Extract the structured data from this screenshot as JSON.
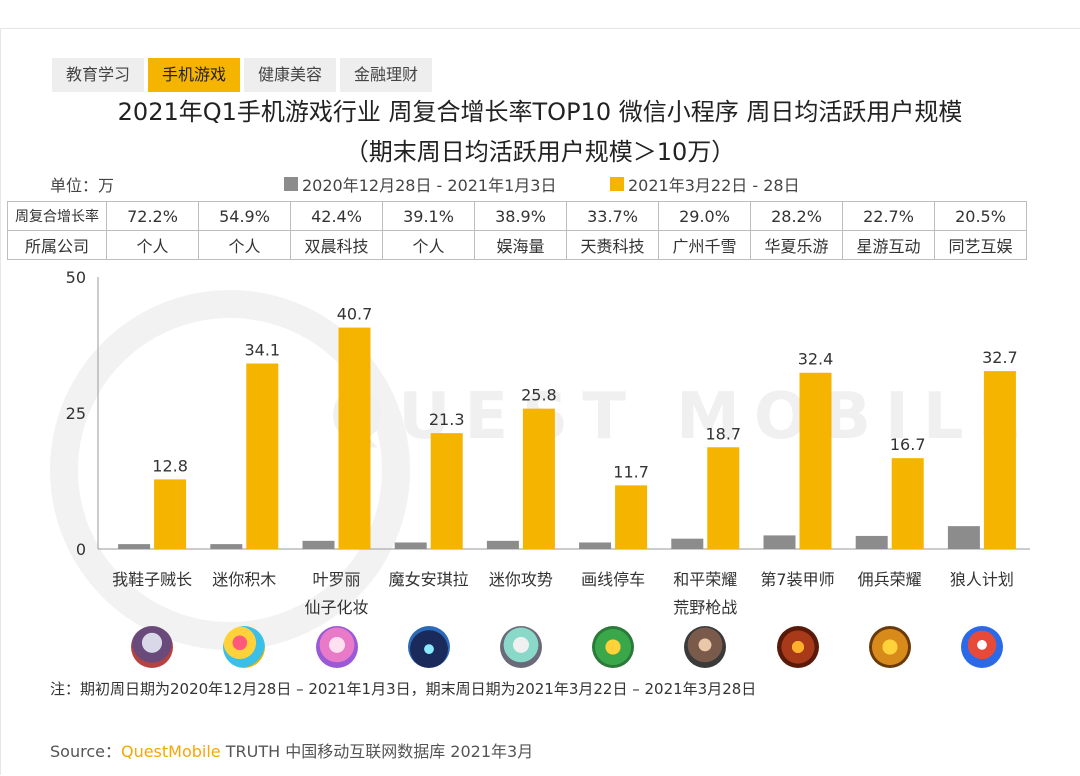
{
  "tabs": [
    {
      "label": "教育学习",
      "active": false
    },
    {
      "label": "手机游戏",
      "active": true
    },
    {
      "label": "健康美容",
      "active": false
    },
    {
      "label": "金融理财",
      "active": false
    }
  ],
  "watermark": "QUEST MOBILE",
  "unit_label": "单位：万",
  "colors": {
    "prev": "#8c8c8c",
    "curr": "#f5b400"
  },
  "table": {
    "row1_header": "周复合增长率",
    "row2_header": "所属公司",
    "growth": [
      "72.2%",
      "54.9%",
      "42.4%",
      "39.1%",
      "38.9%",
      "33.7%",
      "29.0%",
      "28.2%",
      "22.7%",
      "20.5%"
    ],
    "company": [
      "个人",
      "个人",
      "双晨科技",
      "个人",
      "娱海量",
      "天赉科技",
      "广州千雪",
      "华夏乐游",
      "星游互动",
      "同艺互娱"
    ]
  },
  "icons": [
    "game-icon-1",
    "game-icon-2",
    "game-icon-3",
    "game-icon-4",
    "game-icon-5",
    "game-icon-6",
    "game-icon-7",
    "game-icon-8",
    "game-icon-9",
    "game-icon-10"
  ],
  "note": "注：期初周日期为2020年12月28日 – 2021年1月3日，期末周日期为2021年3月22日 – 2021年3月28日",
  "source": {
    "prefix": "Source：",
    "brand": "QuestMobile",
    "suffix": " TRUTH 中国移动互联网数据库 2021年3月"
  },
  "chart_data": {
    "type": "bar",
    "title": "2021年Q1手机游戏行业 周复合增长率TOP10 微信小程序 周日均活跃用户规模",
    "subtitle": "（期末周日均活跃用户规模＞10万）",
    "categories": [
      "我鞋子贼长",
      "迷你积木",
      "叶罗丽\n仙子化妆",
      "魔女安琪拉",
      "迷你攻势",
      "画线停车",
      "和平荣耀\n荒野枪战",
      "第7装甲师",
      "佣兵荣耀",
      "狼人计划"
    ],
    "series": [
      {
        "name": "2020年12月28日 - 2021年1月3日",
        "values": [
          0.9,
          0.9,
          1.5,
          1.2,
          1.5,
          1.2,
          1.9,
          2.5,
          2.4,
          4.2
        ]
      },
      {
        "name": "2021年3月22日 - 28日",
        "values": [
          12.8,
          34.1,
          40.7,
          21.3,
          25.8,
          11.7,
          18.7,
          32.4,
          16.7,
          32.7
        ]
      }
    ],
    "value_labels": [
      "12.8",
      "34.1",
      "40.7",
      "21.3",
      "25.8",
      "11.7",
      "18.7",
      "32.4",
      "16.7",
      "32.7"
    ],
    "yticks": [
      "0",
      "25",
      "50"
    ],
    "ylim": [
      0,
      50
    ]
  }
}
